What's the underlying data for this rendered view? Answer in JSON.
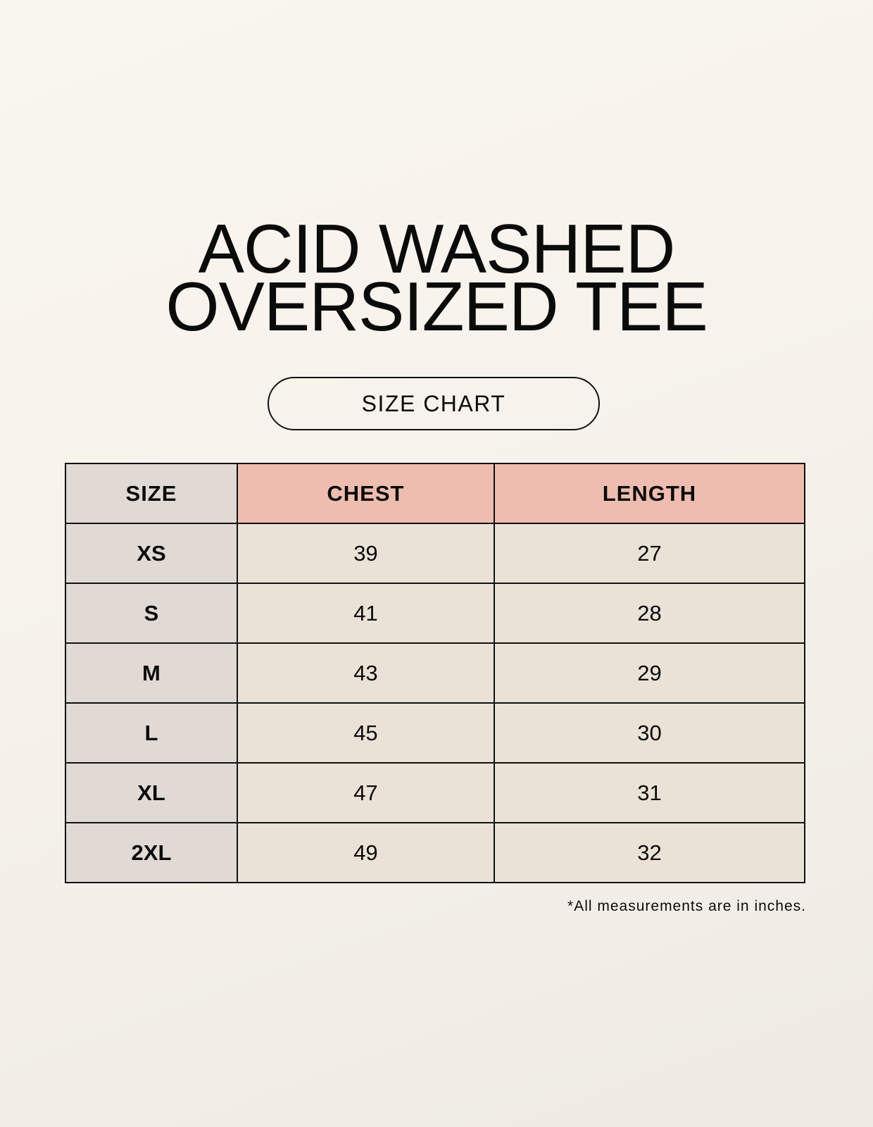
{
  "title": {
    "line1": "ACID WASHED",
    "line2": "OVERSIZED TEE"
  },
  "badge": "SIZE CHART",
  "table": {
    "headers": [
      "SIZE",
      "CHEST",
      "LENGTH"
    ],
    "rows": [
      [
        "XS",
        "39",
        "27"
      ],
      [
        "S",
        "41",
        "28"
      ],
      [
        "M",
        "43",
        "29"
      ],
      [
        "L",
        "45",
        "30"
      ],
      [
        "XL",
        "47",
        "31"
      ],
      [
        "2XL",
        "49",
        "32"
      ]
    ]
  },
  "footnote": "*All measurements are in inches.",
  "colors": {
    "size_column": "#e1d9d3",
    "measure_header": "#eebdb0",
    "value_cells": "#ebe2d7",
    "background": "#f8f5ee"
  }
}
